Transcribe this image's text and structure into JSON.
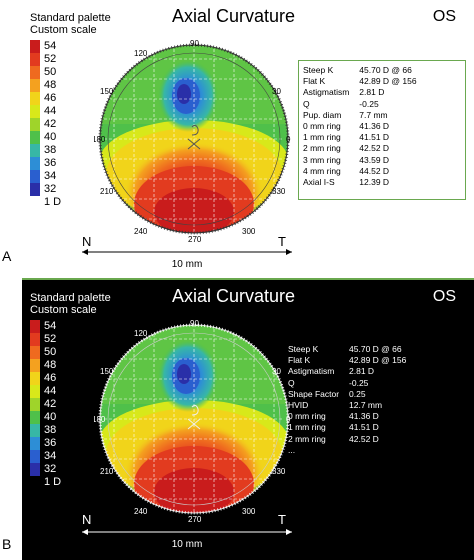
{
  "panels": [
    {
      "label": "A",
      "palette_line1": "Standard palette",
      "palette_line2": "Custom scale",
      "title": "Axial Curvature",
      "eye": "OS",
      "scale_values": [
        "54",
        "52",
        "50",
        "48",
        "46",
        "44",
        "42",
        "40",
        "38",
        "36",
        "34",
        "32",
        "1 D"
      ],
      "scale_colors": [
        "#c91c1c",
        "#e23b1f",
        "#ef6a1f",
        "#f4a11f",
        "#f1d41a",
        "#d8e81a",
        "#9fd42a",
        "#4fc04a",
        "#37b7a6",
        "#2d8ed6",
        "#2a5fcf",
        "#2a2fa8",
        "#ffffff"
      ],
      "angles": {
        "a90": "90",
        "a120": "120",
        "a150": "150",
        "a30": "30",
        "a180": "180",
        "a0": "0",
        "a210": "210",
        "a330": "330",
        "a240": "240",
        "a300": "300",
        "a270": "270"
      },
      "nasal": "N",
      "temporal": "T",
      "distance": "10 mm",
      "stats": [
        [
          "Steep K",
          "45.70 D @ 66"
        ],
        [
          "Flat K",
          "42.89 D @ 156"
        ],
        [
          "Astigmatism",
          "2.81 D"
        ],
        [
          "Q",
          "-0.25"
        ],
        [
          "Pup. diam",
          "7.7 mm"
        ],
        [
          "0 mm ring",
          "41.36 D"
        ],
        [
          "1 mm ring",
          "41.51 D"
        ],
        [
          "2 mm ring",
          "42.52 D"
        ],
        [
          "3 mm ring",
          "43.59 D"
        ],
        [
          "4 mm ring",
          "44.52 D"
        ],
        [
          "Axial I-S",
          "12.39 D"
        ]
      ]
    },
    {
      "label": "B",
      "palette_line1": "Standard palette",
      "palette_line2": "Custom scale",
      "title": "Axial Curvature",
      "eye": "OS",
      "scale_values": [
        "54",
        "52",
        "50",
        "48",
        "46",
        "44",
        "42",
        "40",
        "38",
        "36",
        "34",
        "32",
        "1 D"
      ],
      "scale_colors": [
        "#c91c1c",
        "#e23b1f",
        "#ef6a1f",
        "#f4a11f",
        "#f1d41a",
        "#d8e81a",
        "#9fd42a",
        "#4fc04a",
        "#37b7a6",
        "#2d8ed6",
        "#2a5fcf",
        "#2a2fa8",
        "#000000"
      ],
      "angles": {
        "a90": "90",
        "a120": "120",
        "a150": "150",
        "a30": "30",
        "a180": "180",
        "a0": "0",
        "a210": "210",
        "a330": "330",
        "a240": "240",
        "a300": "300",
        "a270": "270"
      },
      "nasal": "N",
      "temporal": "T",
      "distance": "10 mm",
      "stats": [
        [
          "Steep K",
          "45.70 D @ 66"
        ],
        [
          "Flat K",
          "42.89 D @ 156"
        ],
        [
          "Astigmatism",
          "2.81 D"
        ],
        [
          "Q",
          "-0.25"
        ],
        [
          "Shape Factor",
          "0.25"
        ],
        [
          "HVID",
          "12.7 mm"
        ],
        [
          "0 mm ring",
          "41.36 D"
        ],
        [
          "1 mm ring",
          "41.51 D"
        ],
        [
          "2 mm ring",
          "42.52 D"
        ],
        [
          "...",
          ""
        ]
      ]
    }
  ]
}
